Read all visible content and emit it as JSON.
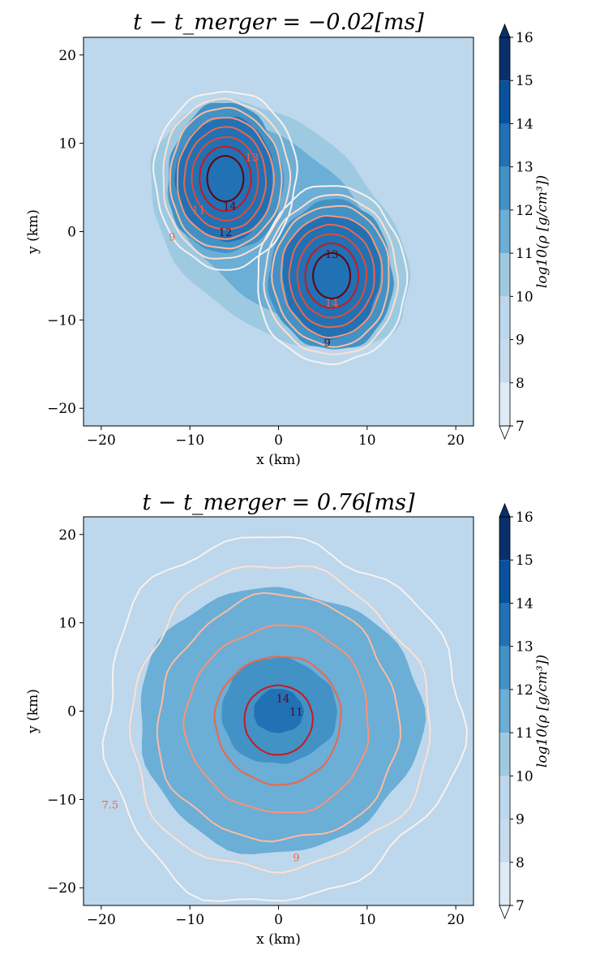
{
  "chart_data": [
    {
      "type": "heatmap",
      "title": "t − t_merger = −0.02[ms]",
      "xlabel": "x (km)",
      "ylabel": "y (km)",
      "xlim": [
        -22,
        22
      ],
      "ylim": [
        -22,
        22
      ],
      "xticks": [
        -20,
        -10,
        0,
        10,
        20
      ],
      "yticks": [
        -20,
        -10,
        0,
        10,
        20
      ],
      "colorbar": {
        "label": "log10(ρ [g/cm³])",
        "range": [
          7,
          16
        ],
        "ticks": [
          7,
          8,
          9,
          10,
          11,
          12,
          13,
          14,
          15,
          16
        ],
        "colormap": "Blues"
      },
      "filled_contours": [
        {
          "level": 10,
          "shape": "envelope",
          "cx": 0,
          "cy": 0.5,
          "rx": 17,
          "ry": 11,
          "angle": -42
        },
        {
          "level": 11,
          "shape": "envelope",
          "cx": 0,
          "cy": 0.5,
          "rx": 15,
          "ry": 8.5,
          "angle": -42
        },
        {
          "level": 12,
          "shape": "star_a",
          "cx": -6,
          "cy": 6,
          "rx": 6.5,
          "ry": 8.5
        },
        {
          "level": 12,
          "shape": "star_b",
          "cx": 6,
          "cy": -5,
          "rx": 7,
          "ry": 8.5
        },
        {
          "level": 13,
          "shape": "star_a",
          "cx": -6,
          "cy": 6,
          "rx": 5.5,
          "ry": 7
        },
        {
          "level": 13,
          "shape": "star_b",
          "cx": 6,
          "cy": -5,
          "rx": 5.5,
          "ry": 7
        }
      ],
      "line_contours": [
        {
          "level": 7,
          "color": "#f7f2f0"
        },
        {
          "level": 8,
          "color": "#fde0d2"
        },
        {
          "level": 9,
          "color": "#fcbba1"
        },
        {
          "level": 10,
          "color": "#fc9272"
        },
        {
          "level": 11,
          "color": "#ef6548"
        },
        {
          "level": 12,
          "color": "#e34a33"
        },
        {
          "level": 13,
          "color": "#cb181d"
        },
        {
          "level": 14,
          "color": "#67000d"
        }
      ],
      "contour_labels": [
        "13",
        "14",
        "11",
        "12",
        "9",
        "13",
        "14",
        "9"
      ]
    },
    {
      "type": "heatmap",
      "title": "t − t_merger = 0.76[ms]",
      "xlabel": "x (km)",
      "ylabel": "y (km)",
      "xlim": [
        -22,
        22
      ],
      "ylim": [
        -22,
        22
      ],
      "xticks": [
        -20,
        -10,
        0,
        10,
        20
      ],
      "yticks": [
        -20,
        -10,
        0,
        10,
        20
      ],
      "colorbar": {
        "label": "log10(ρ [g/cm³])",
        "range": [
          7,
          16
        ],
        "ticks": [
          7,
          8,
          9,
          10,
          11,
          12,
          13,
          14,
          15,
          16
        ],
        "colormap": "Blues"
      },
      "filled_contours": [
        {
          "level": 11,
          "shape": "disk",
          "cx": 0,
          "cy": -1,
          "rx": 16,
          "ry": 15
        },
        {
          "level": 12,
          "shape": "disk",
          "cx": 0,
          "cy": 0,
          "rx": 6.5,
          "ry": 6
        },
        {
          "level": 13,
          "shape": "core",
          "cx": 0,
          "cy": 0,
          "rx": 2.8,
          "ry": 2.5
        }
      ],
      "line_contours": [
        {
          "level": 7,
          "color": "#f7f2f0"
        },
        {
          "level": 8,
          "color": "#fde0d2"
        },
        {
          "level": 9,
          "color": "#fcbba1"
        },
        {
          "level": 10,
          "color": "#fc9272"
        },
        {
          "level": 11,
          "color": "#ef6548"
        },
        {
          "level": 13,
          "color": "#cb181d"
        }
      ],
      "contour_labels": [
        "9",
        "11",
        "7.5",
        "14"
      ]
    }
  ],
  "colors": {
    "background": "#bdd7ec",
    "blues": [
      "#f7fbff",
      "#deebf7",
      "#c6dbef",
      "#bdd7ec",
      "#9ecae1",
      "#6baed6",
      "#4292c6",
      "#2171b5",
      "#08519c",
      "#08306b"
    ]
  }
}
